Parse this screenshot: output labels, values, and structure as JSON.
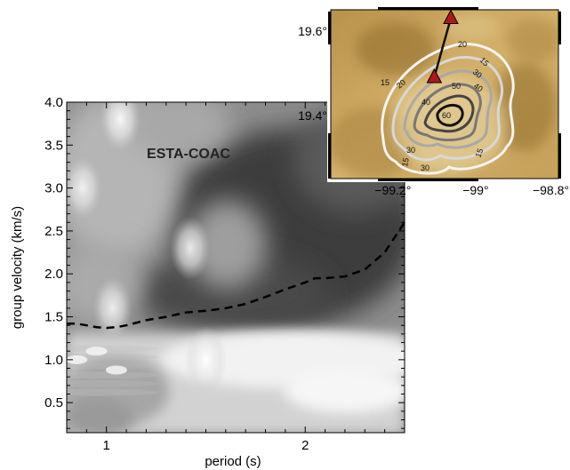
{
  "chart_data": [
    {
      "type": "heatmap",
      "title": "ESTA-COAC",
      "xlabel": "period (s)",
      "ylabel": "group velocity (km/s)",
      "xlim": [
        0.8,
        2.5
      ],
      "ylim": [
        0.15,
        4.0
      ],
      "x_ticks": [
        1,
        2
      ],
      "x_tick_labels": [
        "1",
        "2"
      ],
      "y_ticks": [
        0.5,
        1.0,
        1.5,
        2.0,
        2.5,
        3.0,
        3.5,
        4.0
      ],
      "y_tick_labels": [
        "0.5",
        "1.0",
        "1.5",
        "2.0",
        "2.5",
        "3.0",
        "3.5",
        "4.0"
      ],
      "colormap": "grayscale, white = high energy, dark = low energy",
      "series": [
        {
          "style": "dashed",
          "color": "#000000",
          "x": [
            0.8,
            0.85,
            0.9,
            0.95,
            1.0,
            1.05,
            1.1,
            1.2,
            1.3,
            1.4,
            1.5,
            1.6,
            1.7,
            1.8,
            1.9,
            2.0,
            2.05,
            2.1,
            2.2,
            2.3,
            2.4,
            2.5
          ],
          "y": [
            1.42,
            1.42,
            1.4,
            1.38,
            1.37,
            1.38,
            1.4,
            1.46,
            1.5,
            1.55,
            1.57,
            1.6,
            1.65,
            1.73,
            1.82,
            1.9,
            1.95,
            1.95,
            1.97,
            2.05,
            2.25,
            2.6
          ]
        }
      ],
      "energy_peaks": [
        {
          "period": 1.07,
          "velocity": 3.8,
          "strength": 0.9
        },
        {
          "period": 0.88,
          "velocity": 3.0,
          "strength": 0.8
        },
        {
          "period": 1.42,
          "velocity": 2.3,
          "strength": 0.85
        },
        {
          "period": 1.03,
          "velocity": 1.6,
          "strength": 0.8
        },
        {
          "period": 1.5,
          "velocity": 1.0,
          "strength": 0.95
        }
      ]
    },
    {
      "type": "map",
      "lon_range": [
        -99.35,
        -98.8
      ],
      "lat_range": [
        19.25,
        19.65
      ],
      "x_ticks": [
        -99.2,
        -99.0,
        -98.8
      ],
      "x_tick_labels": [
        "−99.2°",
        "−99°",
        "−98.8°"
      ],
      "y_ticks": [
        19.4,
        19.6
      ],
      "y_tick_labels": [
        "19.4°",
        "19.6°"
      ],
      "stations": [
        {
          "lon": -99.06,
          "lat": 19.63,
          "color": "#b01818"
        },
        {
          "lon": -99.1,
          "lat": 19.49,
          "color": "#b01818"
        }
      ],
      "contour_labels": [
        "15",
        "20",
        "30",
        "40",
        "50",
        "60"
      ],
      "colors": {
        "terrain": "#c9a55b",
        "contour_light": "#eeeeee",
        "contour_dark": "#1a1a1a",
        "station": "#b01818"
      }
    }
  ]
}
